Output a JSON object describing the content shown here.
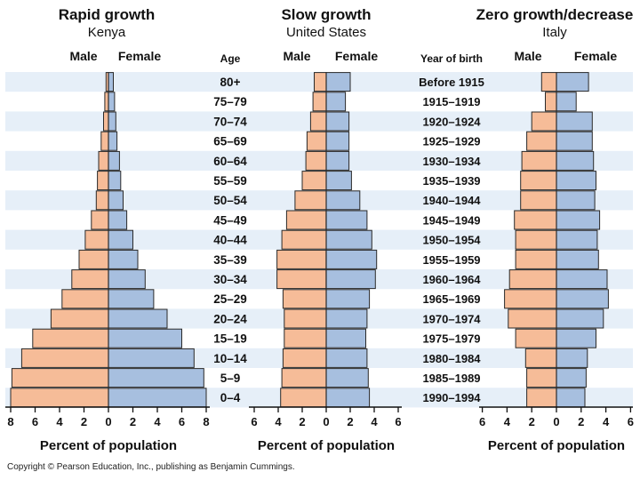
{
  "age_header": "Age",
  "year_header": "Year of birth",
  "age_groups": [
    "80+",
    "75–79",
    "70–74",
    "65–69",
    "60–64",
    "55–59",
    "50–54",
    "45–49",
    "40–44",
    "35–39",
    "30–34",
    "25–29",
    "20–24",
    "15–19",
    "10–14",
    "5–9",
    "0–4"
  ],
  "birth_years": [
    "Before 1915",
    "1915–1919",
    "1920–1924",
    "1925–1929",
    "1930–1934",
    "1935–1939",
    "1940–1944",
    "1945–1949",
    "1950–1954",
    "1955–1959",
    "1960–1964",
    "1965–1969",
    "1970–1974",
    "1975–1979",
    "1980–1984",
    "1985–1989",
    "1990–1994"
  ],
  "male_label": "Male",
  "female_label": "Female",
  "copyright": "Copyright © Pearson Education, Inc., publishing as Benjamin Cummings.",
  "colors": {
    "male": "#f6bc98",
    "female": "#a7bfdf",
    "stripe": "#e6eff8",
    "edge": "#2a2a2a"
  },
  "chart_data": [
    {
      "type": "bar",
      "orientation": "population-pyramid",
      "title": "Rapid growth",
      "subtitle": "Kenya",
      "xlabel": "Percent of population",
      "xlim": [
        0,
        8
      ],
      "xticks": [
        8,
        6,
        4,
        2,
        0,
        2,
        4,
        6,
        8
      ],
      "categories": [
        "80+",
        "75–79",
        "70–74",
        "65–69",
        "60–64",
        "55–59",
        "50–54",
        "45–49",
        "40–44",
        "35–39",
        "30–34",
        "25–29",
        "20–24",
        "15–19",
        "10–14",
        "5–9",
        "0–4"
      ],
      "series": [
        {
          "name": "Male",
          "values": [
            0.2,
            0.3,
            0.4,
            0.6,
            0.8,
            0.9,
            1.0,
            1.4,
            1.9,
            2.4,
            3.0,
            3.8,
            4.7,
            6.2,
            7.1,
            7.9,
            8.0
          ]
        },
        {
          "name": "Female",
          "values": [
            0.4,
            0.5,
            0.6,
            0.7,
            0.9,
            1.0,
            1.2,
            1.5,
            2.0,
            2.4,
            3.0,
            3.7,
            4.8,
            6.0,
            7.0,
            7.8,
            8.0
          ]
        }
      ]
    },
    {
      "type": "bar",
      "orientation": "population-pyramid",
      "title": "Slow growth",
      "subtitle": "United States",
      "xlabel": "Percent of population",
      "xlim": [
        0,
        6
      ],
      "xticks": [
        6,
        4,
        2,
        0,
        2,
        4,
        6
      ],
      "categories": [
        "80+",
        "75–79",
        "70–74",
        "65–69",
        "60–64",
        "55–59",
        "50–54",
        "45–49",
        "40–44",
        "35–39",
        "30–34",
        "25–29",
        "20–24",
        "15–19",
        "10–14",
        "5–9",
        "0–4"
      ],
      "series": [
        {
          "name": "Male",
          "values": [
            1.0,
            1.1,
            1.3,
            1.6,
            1.7,
            2.0,
            2.6,
            3.3,
            3.7,
            4.1,
            4.1,
            3.6,
            3.5,
            3.5,
            3.6,
            3.7,
            3.8
          ]
        },
        {
          "name": "Female",
          "values": [
            2.0,
            1.6,
            1.9,
            1.9,
            1.9,
            2.1,
            2.8,
            3.4,
            3.8,
            4.2,
            4.1,
            3.6,
            3.4,
            3.3,
            3.4,
            3.5,
            3.6
          ]
        }
      ]
    },
    {
      "type": "bar",
      "orientation": "population-pyramid",
      "title": "Zero growth/decrease",
      "subtitle": "Italy",
      "xlabel": "Percent of population",
      "xlim": [
        0,
        6
      ],
      "xticks": [
        6,
        4,
        2,
        0,
        2,
        4,
        6
      ],
      "categories": [
        "80+",
        "75–79",
        "70–74",
        "65–69",
        "60–64",
        "55–59",
        "50–54",
        "45–49",
        "40–44",
        "35–39",
        "30–34",
        "25–29",
        "20–24",
        "15–19",
        "10–14",
        "5–9",
        "0–4"
      ],
      "series": [
        {
          "name": "Male",
          "values": [
            1.2,
            0.9,
            2.0,
            2.4,
            2.8,
            2.9,
            2.9,
            3.4,
            3.3,
            3.3,
            3.8,
            4.2,
            3.9,
            3.3,
            2.5,
            2.4,
            2.4
          ]
        },
        {
          "name": "Female",
          "values": [
            2.6,
            1.6,
            2.9,
            2.9,
            3.0,
            3.2,
            3.1,
            3.5,
            3.3,
            3.4,
            4.1,
            4.2,
            3.8,
            3.2,
            2.5,
            2.4,
            2.3
          ]
        }
      ]
    }
  ]
}
